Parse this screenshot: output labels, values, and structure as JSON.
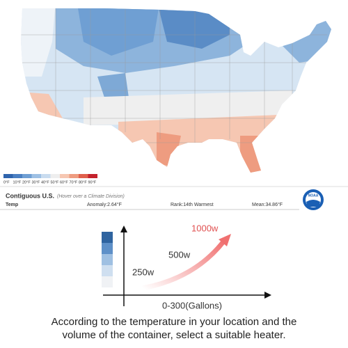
{
  "map": {
    "legend": [
      {
        "label": "0°F",
        "color": "#2f64ad"
      },
      {
        "label": "10°F",
        "color": "#4b80c2"
      },
      {
        "label": "20°F",
        "color": "#6f9fd3"
      },
      {
        "label": "30°F",
        "color": "#9ec0e4"
      },
      {
        "label": "40°F",
        "color": "#c9dcef"
      },
      {
        "label": "50°F",
        "color": "#eeeeee"
      },
      {
        "label": "60°F",
        "color": "#f6c7b2"
      },
      {
        "label": "70°F",
        "color": "#ee9c80"
      },
      {
        "label": "80°F",
        "color": "#e0604c"
      },
      {
        "label": "90°F",
        "color": "#c4222c"
      }
    ]
  },
  "info_bar": {
    "region": "Contiguous U.S.",
    "hint": "(Hover over a Climate Division)",
    "parameter": "Temp",
    "anomaly": "Anomaly:2.64°F",
    "rank": "Rank:14th Warmest",
    "mean": "Mean:34.86°F",
    "logo": "NOAA"
  },
  "diagram": {
    "low": "250w",
    "mid": "500w",
    "high": "1000w",
    "x_axis_label": "0-300(Gallons)",
    "caption": [
      "According to the temperature in your location and the",
      "volume of the container, select a suitable heater."
    ]
  }
}
